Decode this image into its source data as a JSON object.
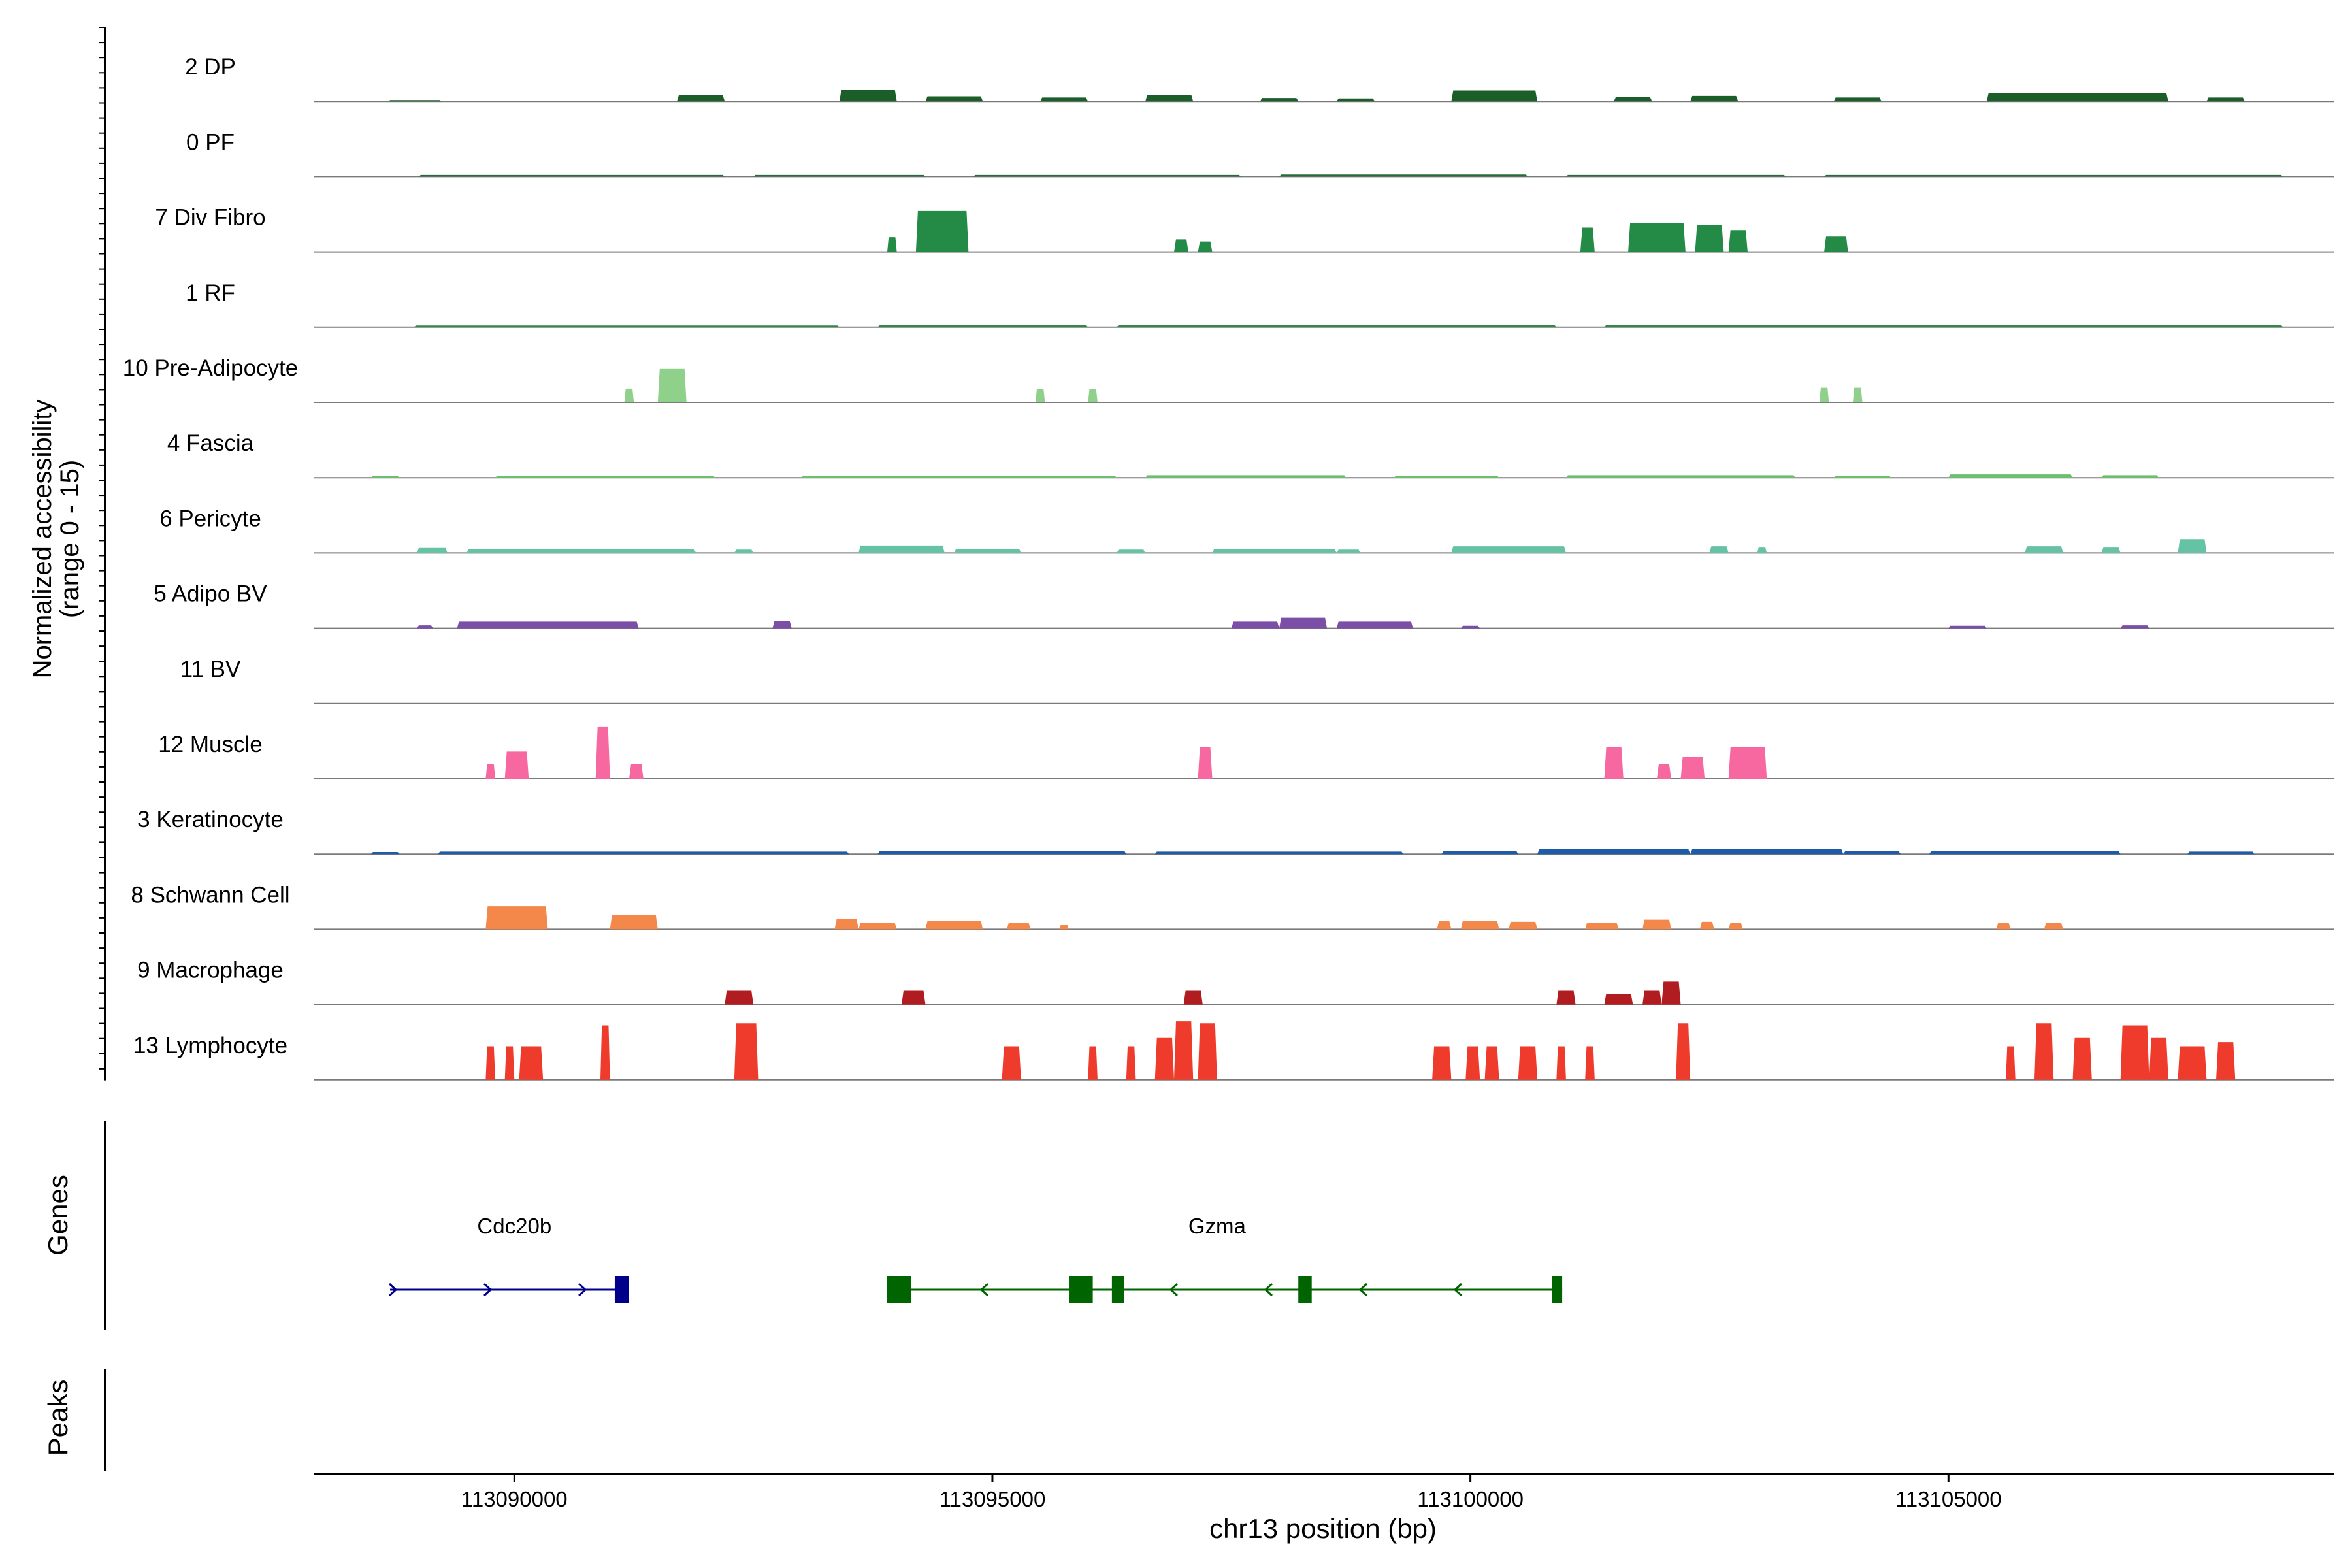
{
  "chart_data": {
    "type": "area",
    "title": "",
    "ylabel": "Normalized accessibility",
    "ylabel_range": "(range 0 - 15)",
    "ylim": [
      0,
      15
    ],
    "xlabel": "chr13 position (bp)",
    "xlim": [
      113087900,
      113109030
    ],
    "xticks": [
      113090000,
      113095000,
      113100000,
      113105000
    ],
    "xtick_labels": [
      "113090000",
      "113095000",
      "113100000",
      "113105000"
    ],
    "genes_label": "Genes",
    "peaks_label": "Peaks",
    "tracks": [
      {
        "name": "2 DP",
        "color": "#1b5e2a",
        "peaks": [
          [
            113088680,
            113089240,
            0.3
          ],
          [
            113091700,
            113092200,
            1.5
          ],
          [
            113093400,
            113094000,
            2.8
          ],
          [
            113094300,
            113094900,
            1.2
          ],
          [
            113095500,
            113096000,
            0.9
          ],
          [
            113096600,
            113097100,
            1.6
          ],
          [
            113097800,
            113098200,
            0.8
          ],
          [
            113098600,
            113099000,
            0.7
          ],
          [
            113099800,
            113100700,
            2.6
          ],
          [
            113101500,
            113101900,
            1.0
          ],
          [
            113102300,
            113102800,
            1.3
          ],
          [
            113103800,
            113104300,
            0.9
          ],
          [
            113105400,
            113107300,
            2.0
          ],
          [
            113107700,
            113108100,
            0.9
          ]
        ]
      },
      {
        "name": "0 PF",
        "color": "#276b3a",
        "peaks": [
          [
            113089000,
            113092200,
            0.4
          ],
          [
            113092500,
            113094300,
            0.4
          ],
          [
            113094800,
            113097600,
            0.4
          ],
          [
            113098000,
            113100600,
            0.5
          ],
          [
            113101000,
            113103300,
            0.4
          ],
          [
            113103700,
            113108500,
            0.4
          ]
        ]
      },
      {
        "name": "7 Div Fibro",
        "color": "#238b45",
        "peaks": [
          [
            113093900,
            113094000,
            3.5
          ],
          [
            113094200,
            113094750,
            9.8
          ],
          [
            113096900,
            113097050,
            3.0
          ],
          [
            113097150,
            113097300,
            2.5
          ],
          [
            113101150,
            113101300,
            5.8
          ],
          [
            113101650,
            113102250,
            6.8
          ],
          [
            113102350,
            113102650,
            6.5
          ],
          [
            113102700,
            113102900,
            5.2
          ],
          [
            113103700,
            113103950,
            3.8
          ]
        ]
      },
      {
        "name": "1 RF",
        "color": "#2f8a45",
        "peaks": [
          [
            113088950,
            113093400,
            0.4
          ],
          [
            113093800,
            113096000,
            0.5
          ],
          [
            113096300,
            113100900,
            0.5
          ],
          [
            113101400,
            113108500,
            0.5
          ]
        ]
      },
      {
        "name": "10 Pre-Adipocyte",
        "color": "#8fd18a",
        "peaks": [
          [
            113091150,
            113091250,
            3.3
          ],
          [
            113091500,
            113091800,
            8.0
          ],
          [
            113095450,
            113095550,
            3.2
          ],
          [
            113096000,
            113096100,
            3.2
          ],
          [
            113103650,
            113103750,
            3.5
          ],
          [
            113104000,
            113104100,
            3.5
          ]
        ]
      },
      {
        "name": "4 Fascia",
        "color": "#6cbf6c",
        "peaks": [
          [
            113088500,
            113088800,
            0.4
          ],
          [
            113089800,
            113092100,
            0.5
          ],
          [
            113093000,
            113096300,
            0.5
          ],
          [
            113096600,
            113098700,
            0.6
          ],
          [
            113099200,
            113100300,
            0.5
          ],
          [
            113101000,
            113103400,
            0.6
          ],
          [
            113103800,
            113104400,
            0.5
          ],
          [
            113105000,
            113106300,
            0.8
          ],
          [
            113106600,
            113107200,
            0.6
          ]
        ]
      },
      {
        "name": "6 Pericyte",
        "color": "#66c2a5",
        "peaks": [
          [
            113088980,
            113089300,
            1.2
          ],
          [
            113089500,
            113091900,
            0.9
          ],
          [
            113092300,
            113092500,
            0.8
          ],
          [
            113093600,
            113094500,
            1.8
          ],
          [
            113094600,
            113095300,
            1.0
          ],
          [
            113096300,
            113096600,
            0.8
          ],
          [
            113097300,
            113098600,
            1.0
          ],
          [
            113098600,
            113098850,
            0.8
          ],
          [
            113099800,
            113101000,
            1.6
          ],
          [
            113102500,
            113102700,
            1.6
          ],
          [
            113103000,
            113103100,
            1.3
          ],
          [
            113105800,
            113106200,
            1.6
          ],
          [
            113106600,
            113106800,
            1.3
          ],
          [
            113107400,
            113107700,
            3.3
          ]
        ]
      },
      {
        "name": "5 Adipo BV",
        "color": "#7b4fa6",
        "peaks": [
          [
            113088980,
            113089150,
            0.7
          ],
          [
            113089400,
            113091300,
            1.6
          ],
          [
            113092700,
            113092900,
            1.8
          ],
          [
            113097500,
            113098000,
            1.6
          ],
          [
            113098000,
            113098500,
            2.5
          ],
          [
            113098600,
            113099400,
            1.6
          ],
          [
            113099900,
            113100100,
            0.6
          ],
          [
            113105000,
            113105400,
            0.6
          ],
          [
            113106800,
            113107100,
            0.7
          ]
        ]
      },
      {
        "name": "11 BV",
        "color": "#7b4fa6",
        "peaks": []
      },
      {
        "name": "12 Muscle",
        "color": "#f768a1",
        "peaks": [
          [
            113089700,
            113089800,
            3.5
          ],
          [
            113089900,
            113090150,
            6.5
          ],
          [
            113090850,
            113091000,
            12.5
          ],
          [
            113091200,
            113091350,
            3.5
          ],
          [
            113097150,
            113097300,
            7.5
          ],
          [
            113101400,
            113101600,
            7.5
          ],
          [
            113101950,
            113102100,
            3.5
          ],
          [
            113102200,
            113102450,
            5.2
          ],
          [
            113102700,
            113103100,
            7.5
          ]
        ]
      },
      {
        "name": "3 Keratinocyte",
        "color": "#1f5ca8",
        "peaks": [
          [
            113088500,
            113088800,
            0.5
          ],
          [
            113089200,
            113093500,
            0.6
          ],
          [
            113093800,
            113096400,
            0.8
          ],
          [
            113096700,
            113099300,
            0.6
          ],
          [
            113099700,
            113100500,
            0.8
          ],
          [
            113100700,
            113102300,
            1.2
          ],
          [
            113102300,
            113103900,
            1.2
          ],
          [
            113103900,
            113104500,
            0.7
          ],
          [
            113104800,
            113106800,
            0.8
          ],
          [
            113107500,
            113108200,
            0.6
          ]
        ]
      },
      {
        "name": "8 Schwann Cell",
        "color": "#f4884a",
        "peaks": [
          [
            113089700,
            113090350,
            5.5
          ],
          [
            113091000,
            113091500,
            3.4
          ],
          [
            113093350,
            113093600,
            2.4
          ],
          [
            113093600,
            113094000,
            1.5
          ],
          [
            113094300,
            113094900,
            2.0
          ],
          [
            113095150,
            113095400,
            1.5
          ],
          [
            113095700,
            113095800,
            1.0
          ],
          [
            113099650,
            113099800,
            2.0
          ],
          [
            113099900,
            113100300,
            2.1
          ],
          [
            113100400,
            113100700,
            1.8
          ],
          [
            113101200,
            113101550,
            1.6
          ],
          [
            113101800,
            113102100,
            2.3
          ],
          [
            113102400,
            113102550,
            1.8
          ],
          [
            113102700,
            113102850,
            1.6
          ],
          [
            113105500,
            113105650,
            1.6
          ],
          [
            113106000,
            113106200,
            1.5
          ]
        ]
      },
      {
        "name": "9 Macrophage",
        "color": "#b01c1f",
        "peaks": [
          [
            113092200,
            113092500,
            3.3
          ],
          [
            113094050,
            113094300,
            3.3
          ],
          [
            113097000,
            113097200,
            3.3
          ],
          [
            113100900,
            113101100,
            3.3
          ],
          [
            113101400,
            113101700,
            2.6
          ],
          [
            113101800,
            113102000,
            3.3
          ],
          [
            113102000,
            113102200,
            5.5
          ]
        ]
      },
      {
        "name": "13 Lymphocyte",
        "color": "#ee3b2c",
        "peaks": [
          [
            113089700,
            113089800,
            8.0
          ],
          [
            113089900,
            113090000,
            8.0
          ],
          [
            113090050,
            113090300,
            8.0
          ],
          [
            113090900,
            113091000,
            13.0
          ],
          [
            113092300,
            113092550,
            13.5
          ],
          [
            113095100,
            113095300,
            8.0
          ],
          [
            113096000,
            113096100,
            8.0
          ],
          [
            113096400,
            113096500,
            8.0
          ],
          [
            113096700,
            113096900,
            10.0
          ],
          [
            113096900,
            113097100,
            14.0
          ],
          [
            113097150,
            113097350,
            13.5
          ],
          [
            113099600,
            113099800,
            8.0
          ],
          [
            113099950,
            113100100,
            8.0
          ],
          [
            113100150,
            113100300,
            8.0
          ],
          [
            113100500,
            113100700,
            8.0
          ],
          [
            113100900,
            113101000,
            8.0
          ],
          [
            113101200,
            113101300,
            8.0
          ],
          [
            113102150,
            113102300,
            13.5
          ],
          [
            113105600,
            113105700,
            8.0
          ],
          [
            113105900,
            113106100,
            13.5
          ],
          [
            113106300,
            113106500,
            10.0
          ],
          [
            113106800,
            113107100,
            13.0
          ],
          [
            113107100,
            113107300,
            10.0
          ],
          [
            113107400,
            113107700,
            8.0
          ],
          [
            113107800,
            113108000,
            9.0
          ]
        ]
      }
    ],
    "genes": [
      {
        "name": "Cdc20b",
        "color": "#00008b",
        "strand": "+",
        "start": 113088700,
        "end": 113091200,
        "exons": [
          [
            113091050,
            113091200
          ]
        ]
      },
      {
        "name": "Gzma",
        "color": "#006400",
        "strand": "-",
        "start": 113093900,
        "end": 113100960,
        "exons": [
          [
            113093900,
            113094150
          ],
          [
            113095800,
            113096050
          ],
          [
            113096250,
            113096380
          ],
          [
            113098200,
            113098340
          ],
          [
            113100850,
            113100960
          ]
        ]
      }
    ]
  }
}
